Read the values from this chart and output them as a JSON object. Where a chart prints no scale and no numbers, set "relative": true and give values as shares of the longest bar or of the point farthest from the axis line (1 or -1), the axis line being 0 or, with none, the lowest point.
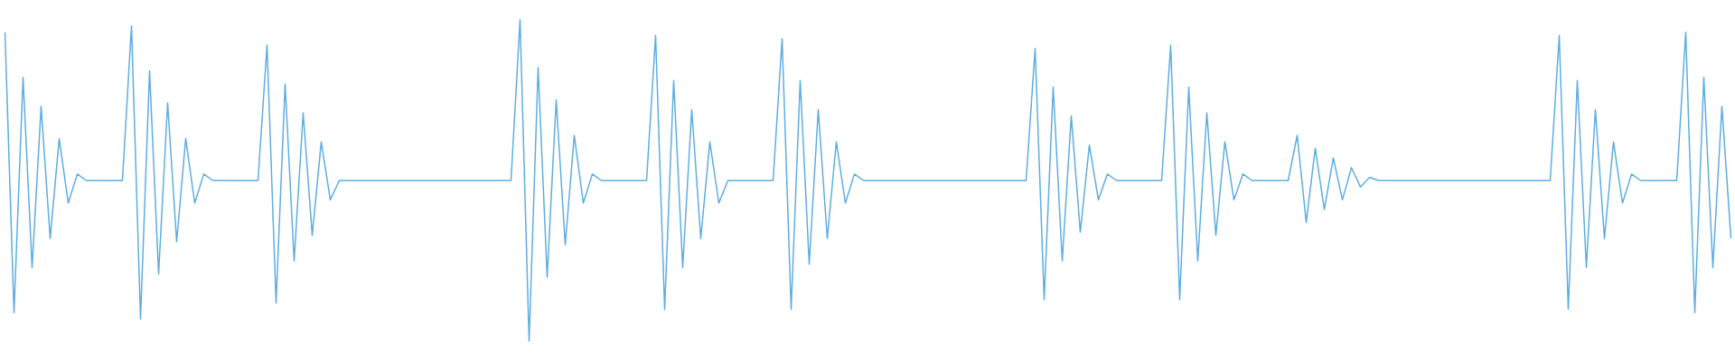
{
  "chart_data": {
    "type": "line",
    "relative": true,
    "categories": [
      null,
      null,
      null,
      null,
      null,
      null,
      null,
      null,
      null,
      null,
      null,
      null,
      null,
      null,
      null,
      null,
      null,
      null,
      null,
      null,
      null,
      null,
      null,
      null,
      null,
      null,
      null,
      null,
      null,
      null,
      null,
      null,
      null,
      null,
      null,
      null,
      null,
      null,
      null,
      null,
      null,
      null,
      null,
      null,
      null,
      null,
      null,
      null,
      null,
      null,
      null,
      null,
      null,
      null,
      null,
      null,
      null,
      null,
      null,
      null,
      null,
      null,
      null,
      null,
      null,
      null,
      null,
      null,
      null,
      null,
      null,
      null,
      null,
      null,
      null,
      null,
      null,
      null,
      null,
      null,
      null,
      null,
      null,
      null,
      null,
      null,
      null,
      null,
      null,
      null,
      null,
      null,
      null,
      null,
      null,
      null,
      null,
      null,
      null,
      null,
      null,
      null,
      null,
      null,
      null,
      null,
      null,
      null,
      null,
      null,
      null,
      null,
      null,
      null,
      null,
      null,
      null,
      null,
      null,
      null,
      null,
      null,
      null,
      null,
      null,
      null,
      null,
      null,
      null,
      null,
      null,
      null,
      null,
      null,
      null,
      null,
      null,
      null,
      null,
      null,
      null,
      null,
      null,
      null,
      null,
      null,
      null,
      null,
      null,
      null,
      null,
      null,
      null,
      null,
      null,
      null,
      null,
      null,
      null,
      null,
      null,
      null,
      null,
      null,
      null,
      null,
      null,
      null,
      null,
      null,
      null,
      null,
      null,
      null,
      null,
      null,
      null,
      null,
      null,
      null,
      null,
      null,
      null,
      null,
      null,
      null,
      null,
      null,
      null,
      null,
      null,
      null
    ],
    "series": [
      {
        "color": "#5dade2",
        "values": [
          0.96,
          0.09,
          0.82,
          0.23,
          0.73,
          0.32,
          0.63,
          0.43,
          0.52,
          0.5,
          0.5,
          0.5,
          0.5,
          0.5,
          0.98,
          0.07,
          0.84,
          0.21,
          0.74,
          0.31,
          0.63,
          0.43,
          0.52,
          0.5,
          0.5,
          0.5,
          0.5,
          0.5,
          0.5,
          0.92,
          0.12,
          0.8,
          0.25,
          0.71,
          0.33,
          0.62,
          0.44,
          0.5,
          0.5,
          0.5,
          0.5,
          0.5,
          0.5,
          0.5,
          0.5,
          0.5,
          0.5,
          0.5,
          0.5,
          0.5,
          0.5,
          0.5,
          0.5,
          0.5,
          0.5,
          0.5,
          0.5,
          1.0,
          0.0,
          0.85,
          0.2,
          0.75,
          0.3,
          0.64,
          0.43,
          0.52,
          0.5,
          0.5,
          0.5,
          0.5,
          0.5,
          0.5,
          0.95,
          0.1,
          0.81,
          0.23,
          0.72,
          0.32,
          0.62,
          0.43,
          0.5,
          0.5,
          0.5,
          0.5,
          0.5,
          0.5,
          0.94,
          0.1,
          0.81,
          0.24,
          0.72,
          0.32,
          0.62,
          0.43,
          0.52,
          0.5,
          0.5,
          0.5,
          0.5,
          0.5,
          0.5,
          0.5,
          0.5,
          0.5,
          0.5,
          0.5,
          0.5,
          0.5,
          0.5,
          0.5,
          0.5,
          0.5,
          0.5,
          0.5,
          0.91,
          0.13,
          0.79,
          0.25,
          0.7,
          0.34,
          0.61,
          0.44,
          0.52,
          0.5,
          0.5,
          0.5,
          0.5,
          0.5,
          0.5,
          0.92,
          0.13,
          0.79,
          0.25,
          0.71,
          0.33,
          0.62,
          0.44,
          0.52,
          0.5,
          0.5,
          0.5,
          0.5,
          0.5,
          0.64,
          0.37,
          0.6,
          0.41,
          0.57,
          0.44,
          0.54,
          0.48,
          0.51,
          0.5,
          0.5,
          0.5,
          0.5,
          0.5,
          0.5,
          0.5,
          0.5,
          0.5,
          0.5,
          0.5,
          0.5,
          0.5,
          0.5,
          0.5,
          0.5,
          0.5,
          0.5,
          0.5,
          0.5,
          0.95,
          0.1,
          0.81,
          0.23,
          0.72,
          0.32,
          0.62,
          0.43,
          0.52,
          0.5,
          0.5,
          0.5,
          0.5,
          0.5,
          0.96,
          0.09,
          0.82,
          0.23,
          0.73,
          0.32
        ]
      }
    ]
  }
}
